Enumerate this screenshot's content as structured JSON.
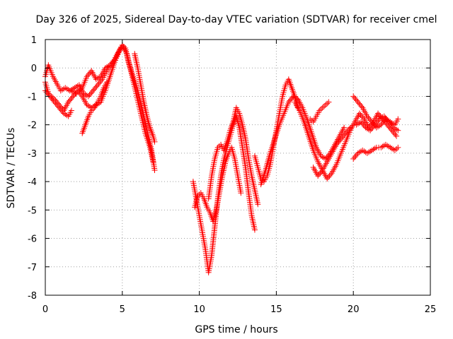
{
  "chart_data": {
    "type": "scatter",
    "title": "Day 326 of 2025, Sidereal Day-to-day VTEC variation (SDTVAR) for receiver cmel",
    "xlabel": "GPS time / hours",
    "ylabel": "SDTVAR / TECUs",
    "xlim": [
      0,
      25
    ],
    "ylim": [
      -8,
      1
    ],
    "xticks": [
      "0",
      "5",
      "10",
      "15",
      "20",
      "25"
    ],
    "yticks": [
      "1",
      "0",
      "-1",
      "-2",
      "-3",
      "-4",
      "-5",
      "-6",
      "-7",
      "-8"
    ],
    "grid": true,
    "marker": "+",
    "series_color": "#ff0000",
    "segments": [
      {
        "x": [
          0.0,
          0.2,
          0.5,
          0.8,
          1.0,
          1.3,
          1.6,
          2.0,
          2.4,
          2.7,
          3.0,
          3.3,
          3.6,
          3.9,
          4.2,
          4.5,
          4.8,
          5.0,
          5.2,
          5.4,
          5.7,
          6.0,
          6.3,
          6.6,
          6.9,
          7.1
        ],
        "y": [
          -0.3,
          0.1,
          -0.3,
          -0.6,
          -0.8,
          -0.7,
          -0.8,
          -0.9,
          -0.7,
          -0.3,
          -0.1,
          -0.4,
          -0.3,
          0.0,
          0.1,
          0.3,
          0.6,
          0.8,
          0.7,
          0.2,
          -0.3,
          -0.8,
          -1.5,
          -2.2,
          -2.9,
          -3.6
        ]
      },
      {
        "x": [
          0.0,
          0.2,
          0.4,
          0.6,
          0.9,
          1.2,
          1.5,
          1.8,
          2.1,
          2.4,
          2.7,
          3.0,
          3.3,
          3.6,
          3.9,
          4.2,
          4.5,
          4.8,
          5.0,
          5.3,
          5.6,
          5.9,
          6.2,
          6.5,
          6.8,
          7.0
        ],
        "y": [
          -0.5,
          -0.9,
          -1.0,
          -1.1,
          -1.3,
          -1.5,
          -1.2,
          -1.0,
          -0.8,
          -1.0,
          -1.3,
          -1.4,
          -1.3,
          -1.2,
          -0.8,
          -0.3,
          0.2,
          0.6,
          0.8,
          0.5,
          -0.2,
          -0.9,
          -1.6,
          -2.3,
          -2.8,
          -3.3
        ]
      },
      {
        "x": [
          0.0,
          0.3,
          0.6,
          0.9,
          1.2,
          1.5,
          1.7
        ],
        "y": [
          -0.8,
          -1.0,
          -1.2,
          -1.4,
          -1.6,
          -1.7,
          -1.5
        ]
      },
      {
        "x": [
          2.4,
          2.6,
          2.8,
          3.0,
          3.2,
          3.4,
          3.6,
          3.8,
          4.0
        ],
        "y": [
          -2.3,
          -2.0,
          -1.7,
          -1.5,
          -1.4,
          -1.2,
          -1.0,
          -0.7,
          -0.5
        ]
      },
      {
        "x": [
          1.6,
          1.9,
          2.2,
          2.5,
          2.8,
          3.1,
          3.4,
          3.7,
          3.9,
          4.1,
          4.3,
          4.5,
          4.7,
          4.9
        ],
        "y": [
          -0.8,
          -0.7,
          -0.6,
          -0.9,
          -1.0,
          -0.8,
          -0.6,
          -0.4,
          -0.2,
          0.0,
          0.1,
          0.3,
          0.5,
          0.7
        ]
      },
      {
        "x": [
          5.8,
          6.0,
          6.2,
          6.4,
          6.6,
          6.8,
          7.0,
          7.1
        ],
        "y": [
          0.5,
          0.0,
          -0.6,
          -1.2,
          -1.7,
          -2.1,
          -2.4,
          -2.6
        ]
      },
      {
        "x": [
          9.6,
          9.8,
          10.0,
          10.2,
          10.4,
          10.6,
          10.8,
          11.0,
          11.2,
          11.4,
          11.6,
          11.8,
          12.0,
          12.2,
          12.4,
          12.6,
          12.8,
          13.0,
          13.2,
          13.4,
          13.6
        ],
        "y": [
          -4.0,
          -4.6,
          -5.2,
          -5.8,
          -6.4,
          -7.2,
          -6.6,
          -5.6,
          -4.6,
          -3.8,
          -3.2,
          -2.8,
          -2.4,
          -2.0,
          -1.7,
          -2.1,
          -2.8,
          -3.5,
          -4.4,
          -5.2,
          -5.7
        ]
      },
      {
        "x": [
          9.7,
          9.9,
          10.1,
          10.3,
          10.5,
          10.7,
          10.9,
          11.1,
          11.3,
          11.5,
          11.7,
          11.9,
          12.1,
          12.3,
          12.5,
          12.7
        ],
        "y": [
          -4.9,
          -4.5,
          -4.4,
          -4.6,
          -4.9,
          -5.1,
          -5.4,
          -5.0,
          -4.4,
          -3.8,
          -3.3,
          -3.0,
          -2.8,
          -3.2,
          -3.8,
          -4.4
        ]
      },
      {
        "x": [
          10.6,
          10.8,
          11.0,
          11.2,
          11.4,
          11.6,
          11.8,
          12.0,
          12.2,
          12.4,
          12.6,
          12.8,
          13.0,
          13.2,
          13.4,
          13.6,
          13.8
        ],
        "y": [
          -4.6,
          -3.8,
          -3.2,
          -2.8,
          -2.7,
          -2.9,
          -2.6,
          -2.2,
          -1.9,
          -1.4,
          -1.6,
          -2.0,
          -2.5,
          -3.2,
          -3.8,
          -4.3,
          -4.8
        ]
      },
      {
        "x": [
          13.6,
          13.8,
          14.0,
          14.2,
          14.4,
          14.6,
          14.8,
          15.0,
          15.2,
          15.4,
          15.6,
          15.8,
          16.0,
          16.2,
          16.4
        ],
        "y": [
          -3.1,
          -3.5,
          -3.9,
          -4.0,
          -3.8,
          -3.4,
          -2.8,
          -2.2,
          -1.6,
          -1.0,
          -0.6,
          -0.4,
          -0.7,
          -1.0,
          -1.4
        ]
      },
      {
        "x": [
          14.0,
          14.3,
          14.6,
          14.9,
          15.2,
          15.5,
          15.8,
          16.1,
          16.4,
          16.7,
          17.0,
          17.3,
          17.6,
          17.9,
          18.2,
          18.5,
          18.8,
          19.1,
          19.4
        ],
        "y": [
          -4.1,
          -3.6,
          -3.0,
          -2.5,
          -2.0,
          -1.6,
          -1.2,
          -1.0,
          -1.1,
          -1.4,
          -1.8,
          -2.3,
          -2.8,
          -3.1,
          -3.2,
          -3.0,
          -2.7,
          -2.4,
          -2.1
        ]
      },
      {
        "x": [
          16.2,
          16.5,
          16.8,
          17.1,
          17.4,
          17.7,
          18.0,
          18.3,
          18.6,
          18.9,
          19.2,
          19.5,
          19.8,
          20.1,
          20.4,
          20.7,
          21.0,
          21.3,
          21.6,
          21.9,
          22.2,
          22.5,
          22.8
        ],
        "y": [
          -1.2,
          -1.5,
          -1.9,
          -2.4,
          -2.9,
          -3.3,
          -3.6,
          -3.9,
          -3.7,
          -3.4,
          -3.0,
          -2.6,
          -2.2,
          -1.9,
          -1.6,
          -1.8,
          -2.1,
          -1.9,
          -1.6,
          -1.8,
          -2.0,
          -2.2,
          -2.4
        ]
      },
      {
        "x": [
          17.4,
          17.7,
          18.0,
          18.3,
          18.6,
          18.9,
          19.2,
          19.5,
          19.8
        ],
        "y": [
          -3.5,
          -3.8,
          -3.6,
          -3.3,
          -3.0,
          -2.7,
          -2.5,
          -2.3,
          -2.1
        ]
      },
      {
        "x": [
          17.2,
          17.4,
          17.6,
          17.8,
          18.0,
          18.2,
          18.4
        ],
        "y": [
          -1.8,
          -1.9,
          -1.7,
          -1.5,
          -1.4,
          -1.3,
          -1.2
        ]
      },
      {
        "x": [
          20.0,
          20.3,
          20.6,
          20.9,
          21.2,
          21.5,
          21.8,
          22.1,
          22.4,
          22.7,
          22.9
        ],
        "y": [
          -1.0,
          -1.2,
          -1.4,
          -1.7,
          -1.9,
          -2.1,
          -2.0,
          -1.8,
          -1.9,
          -2.0,
          -1.8
        ]
      },
      {
        "x": [
          20.0,
          20.3,
          20.6,
          20.9,
          21.2,
          21.5,
          21.8,
          22.1,
          22.4,
          22.7,
          22.9
        ],
        "y": [
          -3.2,
          -3.0,
          -2.9,
          -3.0,
          -2.9,
          -2.8,
          -2.8,
          -2.7,
          -2.8,
          -2.9,
          -2.8
        ]
      },
      {
        "x": [
          20.2,
          20.5,
          20.8,
          21.1,
          21.4,
          21.7,
          22.0,
          22.3,
          22.6,
          22.9
        ],
        "y": [
          -2.0,
          -1.9,
          -2.1,
          -2.2,
          -2.0,
          -1.8,
          -1.7,
          -1.9,
          -2.1,
          -2.2
        ]
      }
    ]
  }
}
